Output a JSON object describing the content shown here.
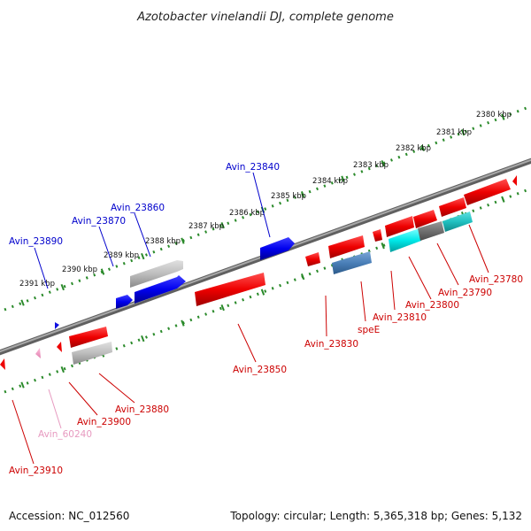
{
  "title": "Azotobacter vinelandii DJ, complete genome",
  "footer": {
    "accession": "Accession: NC_012560",
    "topology": "Topology: circular; Length: 5,365,318 bp; Genes: 5,132"
  },
  "colors": {
    "backbone": "#808080",
    "ticks": "#2a8a2a",
    "forward_label": "#0000cc",
    "reverse_label": "#cc0000",
    "pink_label": "#e79ac0"
  },
  "kbp_ticks": [
    {
      "label": "2380 kbp"
    },
    {
      "label": "2381 kbp"
    },
    {
      "label": "2382 kbp"
    },
    {
      "label": "2383 kbp"
    },
    {
      "label": "2384 kbp"
    },
    {
      "label": "2385 kbp"
    },
    {
      "label": "2386 kbp"
    },
    {
      "label": "2387 kbp"
    },
    {
      "label": "2388 kbp"
    },
    {
      "label": "2389 kbp"
    },
    {
      "label": "2390 kbp"
    },
    {
      "label": "2391 kbp"
    }
  ],
  "gene_labels": [
    {
      "text": "Avin_23840",
      "strand": "forward"
    },
    {
      "text": "Avin_23860",
      "strand": "forward"
    },
    {
      "text": "Avin_23870",
      "strand": "forward"
    },
    {
      "text": "Avin_23890",
      "strand": "forward"
    },
    {
      "text": "Avin_23780",
      "strand": "reverse"
    },
    {
      "text": "Avin_23790",
      "strand": "reverse"
    },
    {
      "text": "Avin_23800",
      "strand": "reverse"
    },
    {
      "text": "Avin_23810",
      "strand": "reverse"
    },
    {
      "text": "speE",
      "strand": "reverse"
    },
    {
      "text": "Avin_23830",
      "strand": "reverse"
    },
    {
      "text": "Avin_23850",
      "strand": "reverse"
    },
    {
      "text": "Avin_23880",
      "strand": "reverse"
    },
    {
      "text": "Avin_23900",
      "strand": "reverse"
    },
    {
      "text": "Avin_60240",
      "strand": "pink"
    },
    {
      "text": "Avin_23910",
      "strand": "reverse"
    }
  ]
}
